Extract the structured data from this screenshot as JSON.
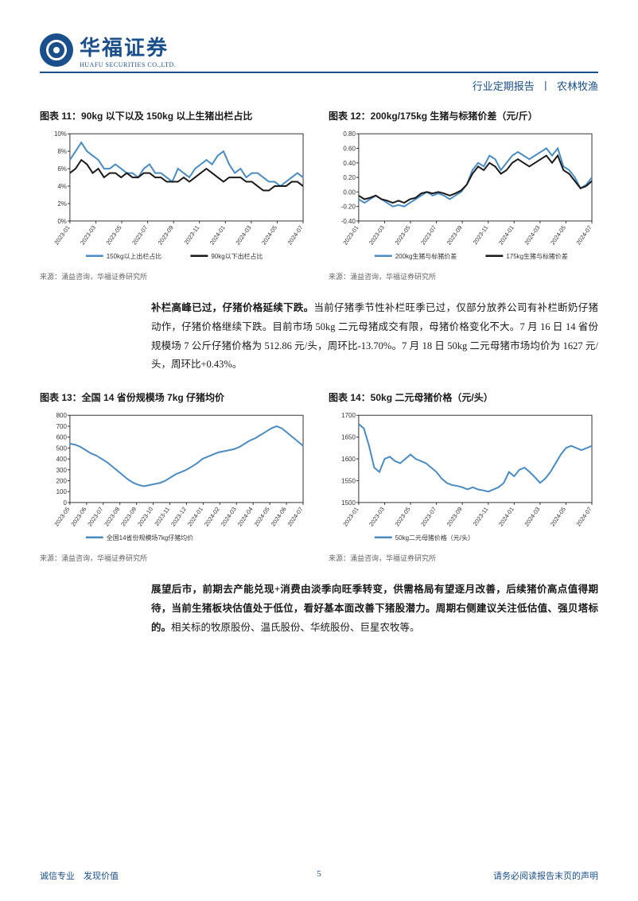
{
  "header": {
    "brand_cn": "华福证券",
    "brand_en": "HUAFU SECURITIES CO.,LTD.",
    "doc_type_left": "行业定期报告",
    "doc_type_right": "农林牧渔"
  },
  "chart11": {
    "title": "图表 11：90kg 以下以及 150kg 以上生猪出栏占比",
    "type": "line",
    "x_labels": [
      "2023-01",
      "2023-03",
      "2023-05",
      "2023-07",
      "2023-09",
      "2023-11",
      "2024-01",
      "2024-03",
      "2024-05",
      "2024-07"
    ],
    "y_min": 0,
    "y_max": 10,
    "y_step": 2,
    "y_suffix": "%",
    "series": [
      {
        "name": "150kg以上出栏占比",
        "color": "#4a8bc2",
        "width": 2,
        "y": [
          7,
          8,
          9,
          8,
          7.5,
          7,
          6,
          6,
          6.5,
          6,
          5.5,
          5.5,
          5,
          6,
          6.5,
          5.5,
          5.5,
          5,
          4.5,
          6,
          5.5,
          5,
          6,
          6.5,
          7,
          6.5,
          7.5,
          8,
          6.5,
          5.5,
          6,
          5,
          5.5,
          5.5,
          5,
          4.5,
          4.5,
          4,
          4.5,
          5,
          5.5,
          5
        ]
      },
      {
        "name": "90kg以下出栏占比",
        "color": "#1a1a1a",
        "width": 2,
        "y": [
          5.5,
          6,
          7,
          6.5,
          5.5,
          6,
          5,
          5.5,
          5.5,
          5,
          5.5,
          5,
          5,
          5.5,
          5.5,
          5,
          5,
          4.5,
          4.5,
          4.5,
          5,
          4.5,
          5,
          5.5,
          6,
          5.5,
          5,
          4.5,
          5,
          5,
          5,
          4.5,
          4.5,
          4,
          3.5,
          3.5,
          4,
          4,
          4,
          4.5,
          4.5,
          4
        ]
      }
    ],
    "legend": [
      "150kg以上出栏占比",
      "90kg以下出栏占比"
    ],
    "source": "来源：涌益咨询，华福证券研究所"
  },
  "chart12": {
    "title": "图表 12：200kg/175kg 生猪与标猪价差（元/斤）",
    "type": "line",
    "x_labels": [
      "2023-01",
      "2023-03",
      "2023-05",
      "2023-07",
      "2023-09",
      "2023-11",
      "2024-01",
      "2024-03",
      "2024-05",
      "2024-07"
    ],
    "y_min": -0.4,
    "y_max": 0.8,
    "y_step": 0.2,
    "y_suffix": "",
    "series": [
      {
        "name": "200kg生猪与标猪价差",
        "color": "#4a8bc2",
        "width": 2,
        "y": [
          -0.1,
          -0.15,
          -0.1,
          -0.05,
          -0.1,
          -0.15,
          -0.2,
          -0.18,
          -0.2,
          -0.15,
          -0.1,
          -0.05,
          0,
          -0.05,
          -0.02,
          -0.05,
          -0.1,
          -0.05,
          0,
          0.1,
          0.3,
          0.4,
          0.35,
          0.5,
          0.45,
          0.3,
          0.4,
          0.5,
          0.55,
          0.5,
          0.45,
          0.5,
          0.55,
          0.6,
          0.5,
          0.6,
          0.35,
          0.3,
          0.2,
          0.05,
          0.1,
          0.2
        ]
      },
      {
        "name": "175kg生猪与标猪价差",
        "color": "#1a1a1a",
        "width": 2,
        "y": [
          -0.05,
          -0.1,
          -0.08,
          -0.05,
          -0.1,
          -0.12,
          -0.15,
          -0.12,
          -0.15,
          -0.1,
          -0.08,
          -0.02,
          0,
          -0.02,
          0,
          -0.02,
          -0.05,
          -0.02,
          0.02,
          0.1,
          0.25,
          0.35,
          0.3,
          0.4,
          0.35,
          0.25,
          0.3,
          0.4,
          0.45,
          0.4,
          0.35,
          0.4,
          0.45,
          0.5,
          0.4,
          0.5,
          0.3,
          0.25,
          0.15,
          0.05,
          0.08,
          0.15
        ]
      }
    ],
    "legend": [
      "200kg生猪与标猪价差",
      "175kg生猪与标猪价差"
    ],
    "source": "来源：涌益咨询，华福证券研究所"
  },
  "para1": {
    "bold": "补栏高峰已过，仔猪价格延续下跌。",
    "text": "当前仔猪季节性补栏旺季已过，仅部分放养公司有补栏断奶仔猪动作，仔猪价格继续下跌。目前市场 50kg 二元母猪成交有限，母猪价格变化不大。7 月 16 日 14 省份规模场 7 公斤仔猪价格为 512.86 元/头，周环比-13.70%。7 月 18 日 50kg 二元母猪市场均价为 1627 元/头，周环比+0.43%。"
  },
  "chart13": {
    "title": "图表 13：全国 14 省份规模场 7kg 仔猪均价",
    "type": "line",
    "x_labels": [
      "2023-05",
      "2023-06",
      "2023-07",
      "2023-08",
      "2023-09",
      "2023-10",
      "2023-11",
      "2023-12",
      "2024-01",
      "2024-02",
      "2024-03",
      "2024-04",
      "2024-05",
      "2024-06",
      "2024-07"
    ],
    "y_min": 0,
    "y_max": 800,
    "y_step": 100,
    "y_suffix": "",
    "series": [
      {
        "name": "全国14省份规模场7kg仔猪均价",
        "color": "#4a8bc2",
        "width": 2,
        "y": [
          540,
          530,
          510,
          480,
          450,
          430,
          400,
          370,
          330,
          290,
          250,
          210,
          180,
          160,
          150,
          160,
          170,
          180,
          200,
          230,
          260,
          280,
          300,
          330,
          360,
          400,
          420,
          440,
          460,
          470,
          480,
          490,
          510,
          540,
          570,
          590,
          620,
          650,
          680,
          700,
          680,
          640,
          600,
          560,
          520
        ]
      }
    ],
    "legend": [
      "全国14省份规模场7kg仔猪均价"
    ],
    "source": "来源：涌益咨询，华福证券研究所"
  },
  "chart14": {
    "title": "图表 14：50kg 二元母猪价格（元/头）",
    "type": "line",
    "x_labels": [
      "2023-01",
      "2023-03",
      "2023-05",
      "2023-07",
      "2023-09",
      "2023-11",
      "2024-01",
      "2024-03",
      "2024-05",
      "2024-07"
    ],
    "y_min": 1500,
    "y_max": 1700,
    "y_step": 50,
    "y_suffix": "",
    "series": [
      {
        "name": "50kg二元母猪价格（元/头）",
        "color": "#4a8bc2",
        "width": 2,
        "y": [
          1680,
          1670,
          1630,
          1580,
          1570,
          1600,
          1605,
          1595,
          1590,
          1600,
          1610,
          1600,
          1595,
          1590,
          1580,
          1570,
          1555,
          1545,
          1540,
          1538,
          1535,
          1530,
          1535,
          1530,
          1528,
          1525,
          1530,
          1535,
          1545,
          1570,
          1560,
          1575,
          1580,
          1570,
          1558,
          1545,
          1555,
          1570,
          1590,
          1610,
          1625,
          1630,
          1625,
          1620,
          1625,
          1630
        ]
      }
    ],
    "legend": [
      "50kg二元母猪价格（元/头）"
    ],
    "source": "来源：涌益咨询，华福证券研究所"
  },
  "para2": {
    "bold": "展望后市，前期去产能兑现+消费由淡季向旺季转变，供需格局有望逐月改善，后续猪价高点值得期待，当前生猪板块估值处于低位，看好基本面改善下猪股潜力。周期右侧建议关注低估值、强贝塔标的。",
    "text": "相关标的牧原股份、温氏股份、华统股份、巨星农牧等。"
  },
  "footer": {
    "left": "诚信专业　发现价值",
    "page": "5",
    "right": "请务必阅读报告末页的声明"
  }
}
